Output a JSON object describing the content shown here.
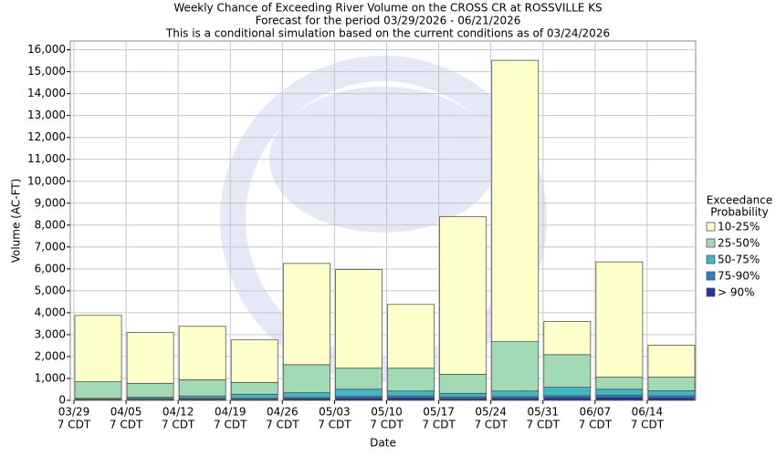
{
  "chart_data": {
    "type": "stacked_bar",
    "title": [
      "Weekly Chance of Exceeding River Volume on the CROSS CR at ROSSVILLE KS",
      "Forecast for the period 03/29/2026 - 06/21/2026",
      "This is a conditional simulation based on the current conditions as of 03/24/2026"
    ],
    "xlabel": "Date",
    "ylabel": "Volume (AC-FT)",
    "legend_title": [
      "Exceedance",
      "Probability"
    ],
    "legend_position": "right",
    "grid": true,
    "categories": [
      [
        "03/29",
        "7 CDT"
      ],
      [
        "04/05",
        "7 CDT"
      ],
      [
        "04/12",
        "7 CDT"
      ],
      [
        "04/19",
        "7 CDT"
      ],
      [
        "04/26",
        "7 CDT"
      ],
      [
        "05/03",
        "7 CDT"
      ],
      [
        "05/10",
        "7 CDT"
      ],
      [
        "05/17",
        "7 CDT"
      ],
      [
        "05/24",
        "7 CDT"
      ],
      [
        "05/31",
        "7 CDT"
      ],
      [
        "06/07",
        "7 CDT"
      ],
      [
        "06/14",
        "7 CDT"
      ]
    ],
    "series": [
      {
        "name": "> 90%",
        "color": "#253494",
        "values": [
          30,
          40,
          60,
          60,
          80,
          110,
          120,
          90,
          100,
          130,
          140,
          120
        ]
      },
      {
        "name": "75-90%",
        "color": "#2c7fb8",
        "values": [
          30,
          40,
          50,
          40,
          50,
          80,
          80,
          70,
          70,
          80,
          100,
          90
        ]
      },
      {
        "name": "50-75%",
        "color": "#41b6c4",
        "values": [
          30,
          70,
          90,
          180,
          220,
          320,
          230,
          160,
          260,
          390,
          270,
          230
        ]
      },
      {
        "name": "25-50%",
        "color": "#a1dab4",
        "values": [
          760,
          630,
          740,
          540,
          1280,
          960,
          1040,
          870,
          2250,
          1490,
          550,
          620
        ]
      },
      {
        "name": "10-25%",
        "color": "#ffffcc",
        "values": [
          3030,
          2320,
          2440,
          1940,
          4620,
          4500,
          2910,
          7190,
          12840,
          1510,
          5260,
          1460
        ]
      }
    ],
    "ylim": [
      0,
      16400
    ],
    "yticks": [
      0,
      {
        "value": 1000,
        "label": "1,000"
      },
      {
        "value": 2000,
        "label": "2,000"
      },
      {
        "value": 3000,
        "label": "3,000"
      },
      {
        "value": 4000,
        "label": "4,000"
      },
      {
        "value": 5000,
        "label": "5,000"
      },
      {
        "value": 6000,
        "label": "6,000"
      },
      {
        "value": 7000,
        "label": "7,000"
      },
      {
        "value": 8000,
        "label": "8,000"
      },
      {
        "value": 9000,
        "label": "9,000"
      },
      {
        "value": 10000,
        "label": "10,000"
      },
      {
        "value": 11000,
        "label": "11,000"
      },
      {
        "value": 12000,
        "label": "12,000"
      },
      {
        "value": 13000,
        "label": "13,000"
      },
      {
        "value": 14000,
        "label": "14,000"
      },
      {
        "value": 15000,
        "label": "15,000"
      },
      {
        "value": 16000,
        "label": "16,000"
      }
    ]
  }
}
